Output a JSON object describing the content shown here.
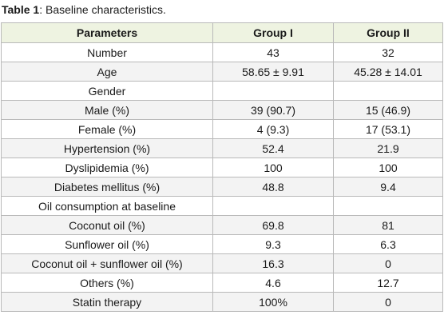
{
  "caption": {
    "label": "Table 1",
    "text": ": Baseline characteristics."
  },
  "table": {
    "headers": [
      "Parameters",
      "Group I",
      "Group II"
    ],
    "rows": [
      [
        "Number",
        "43",
        "32"
      ],
      [
        "Age",
        "58.65 ± 9.91",
        "45.28 ± 14.01"
      ],
      [
        "Gender",
        "",
        ""
      ],
      [
        "Male (%)",
        "39 (90.7)",
        "15 (46.9)"
      ],
      [
        "Female (%)",
        "4 (9.3)",
        "17 (53.1)"
      ],
      [
        "Hypertension (%)",
        "52.4",
        "21.9"
      ],
      [
        "Dyslipidemia (%)",
        "100",
        "100"
      ],
      [
        "Diabetes mellitus (%)",
        "48.8",
        "9.4"
      ],
      [
        "Oil consumption at baseline",
        "",
        ""
      ],
      [
        "Coconut oil (%)",
        "69.8",
        "81"
      ],
      [
        "Sunflower oil (%)",
        "9.3",
        "6.3"
      ],
      [
        "Coconut oil + sunflower oil (%)",
        "16.3",
        "0"
      ],
      [
        "Others (%)",
        "4.6",
        "12.7"
      ],
      [
        "Statin therapy",
        "100%",
        "0"
      ]
    ]
  },
  "colors": {
    "header_bg": "#eef3e1",
    "row_alt_bg": "#f3f3f3",
    "border": "#b9b9b9"
  }
}
